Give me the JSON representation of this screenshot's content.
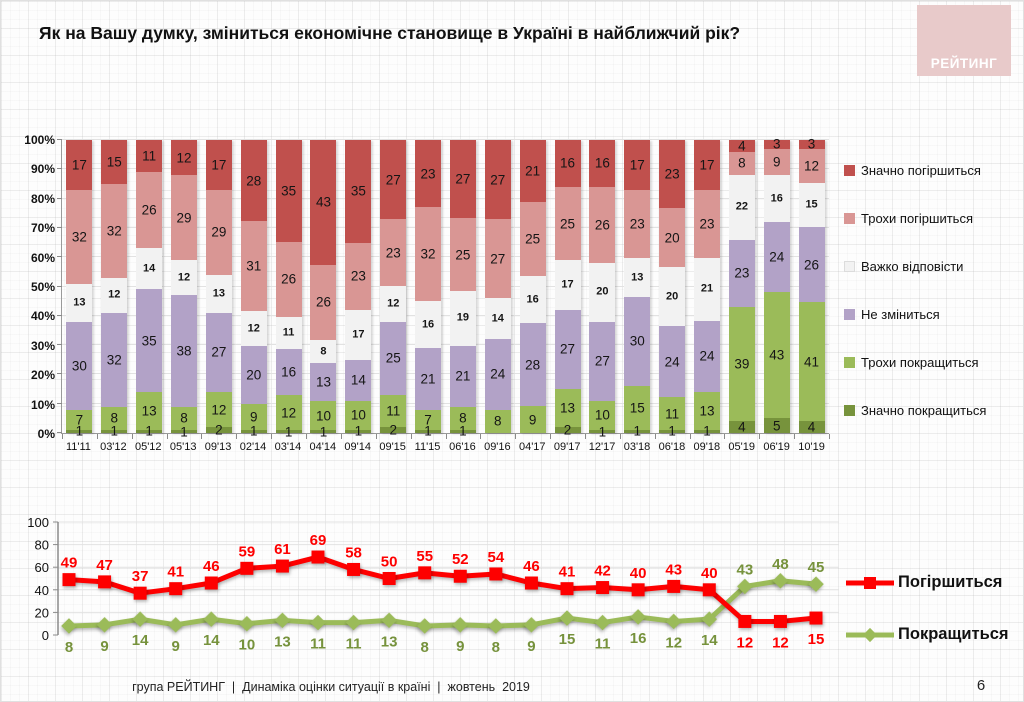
{
  "title": "Як на Вашу думку, зміниться економічне становище в Україні в найближчий рік?",
  "logo": {
    "text": "РЕЙТИНГ",
    "bg": "#e8caca"
  },
  "footer": {
    "text": "група РЕЙТИНГ  |  Динаміка оцінки ситуації в країні  |  жовтень  2019",
    "page": "6"
  },
  "colors": {
    "dark_red": "#c0504d",
    "pink": "#d99694",
    "white_seg": "#f2f2f2",
    "purple": "#b2a2c7",
    "light_green": "#9bbb59",
    "dark_green": "#77933c",
    "red_line": "#fe0000",
    "green_line": "#9bbb59",
    "green_label": "#76923c",
    "axis": "#9a9a9a",
    "grid": "#e2e2e2"
  },
  "chart_data": [
    {
      "type": "bar",
      "stacked": true,
      "ylim": [
        0,
        100
      ],
      "yticks": [
        "0%",
        "10%",
        "20%",
        "30%",
        "40%",
        "50%",
        "60%",
        "70%",
        "80%",
        "90%",
        "100%"
      ],
      "grid": true,
      "legend_position": "right",
      "categories": [
        "11'11",
        "03'12",
        "05'12",
        "05'13",
        "09'13",
        "02'14",
        "03'14",
        "04'14",
        "09'14",
        "09'15",
        "11'15",
        "06'16",
        "09'16",
        "04'17",
        "09'17",
        "12'17",
        "03'18",
        "06'18",
        "09'18",
        "05'19",
        "06'19",
        "10'19"
      ],
      "series": [
        {
          "name": "Значно погіршиться",
          "color": "#c0504d",
          "values": [
            17,
            15,
            11,
            12,
            17,
            28,
            35,
            43,
            35,
            27,
            23,
            27,
            27,
            21,
            16,
            16,
            17,
            23,
            17,
            4,
            3,
            3
          ]
        },
        {
          "name": "Трохи погіршиться",
          "color": "#d99694",
          "values": [
            32,
            32,
            26,
            29,
            29,
            31,
            26,
            26,
            23,
            23,
            32,
            25,
            27,
            25,
            25,
            26,
            23,
            20,
            23,
            8,
            9,
            12
          ]
        },
        {
          "name": "Важко відповісти",
          "color": "#f2f2f2",
          "label_bold": true,
          "values": [
            13,
            12,
            14,
            12,
            13,
            12,
            11,
            8,
            17,
            12,
            16,
            19,
            14,
            16,
            17,
            20,
            13,
            20,
            21,
            22,
            16,
            15
          ]
        },
        {
          "name": "Не зміниться",
          "color": "#b2a2c7",
          "values": [
            30,
            32,
            35,
            38,
            27,
            20,
            16,
            13,
            14,
            25,
            21,
            21,
            24,
            28,
            27,
            27,
            30,
            24,
            24,
            23,
            24,
            26
          ]
        },
        {
          "name": "Трохи покращиться",
          "color": "#9bbb59",
          "values": [
            7,
            8,
            13,
            8,
            12,
            9,
            12,
            10,
            10,
            11,
            7,
            8,
            8,
            9,
            13,
            10,
            15,
            11,
            13,
            39,
            43,
            41
          ]
        },
        {
          "name": "Значно покращиться",
          "color": "#77933c",
          "values": [
            1,
            1,
            1,
            1,
            2,
            1,
            1,
            1,
            1,
            2,
            1,
            1,
            0,
            0,
            2,
            1,
            1,
            1,
            1,
            4,
            5,
            4
          ]
        }
      ]
    },
    {
      "type": "line",
      "ylim": [
        0,
        100
      ],
      "yticks": [
        0,
        20,
        40,
        60,
        80,
        100
      ],
      "grid": true,
      "legend_position": "right",
      "categories": [
        "11'11",
        "03'12",
        "05'12",
        "05'13",
        "09'13",
        "02'14",
        "03'14",
        "04'14",
        "09'14",
        "09'15",
        "11'15",
        "06'16",
        "09'16",
        "04'17",
        "09'17",
        "12'17",
        "03'18",
        "06'18",
        "09'18",
        "05'19",
        "06'19",
        "10'19"
      ],
      "series": [
        {
          "name": "Погіршиться",
          "color": "#fe0000",
          "marker": "square",
          "label_color": "#fe0000",
          "values": [
            49,
            47,
            37,
            41,
            46,
            59,
            61,
            69,
            58,
            50,
            55,
            52,
            54,
            46,
            41,
            42,
            40,
            43,
            40,
            12,
            12,
            15
          ]
        },
        {
          "name": "Покращиться",
          "color": "#9bbb59",
          "marker": "diamond",
          "label_color": "#76923c",
          "values": [
            8,
            9,
            14,
            9,
            14,
            10,
            13,
            11,
            11,
            13,
            8,
            9,
            8,
            9,
            15,
            11,
            16,
            12,
            14,
            43,
            48,
            45
          ]
        }
      ]
    }
  ]
}
